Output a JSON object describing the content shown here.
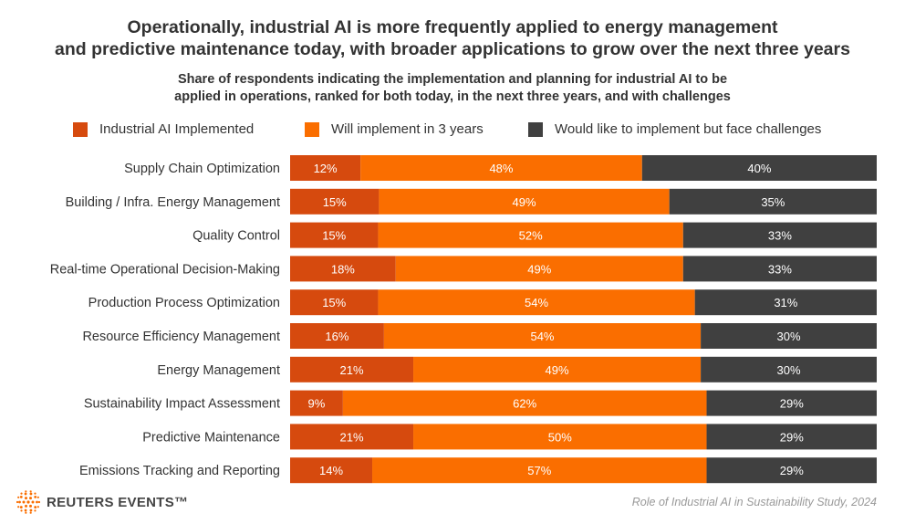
{
  "header": {
    "title_line1": "Operationally, industrial AI is more frequently applied to energy management",
    "title_line2": "and predictive maintenance today, with broader applications to grow over the next three years",
    "subtitle_line1": "Share of respondents indicating the implementation and planning for industrial AI to be",
    "subtitle_line2": "applied in operations, ranked for both today, in the next three years, and with challenges"
  },
  "legend": [
    {
      "label": "Industrial AI Implemented",
      "color": "#d64a0e"
    },
    {
      "label": "Will implement in 3 years",
      "color": "#fa6e00"
    },
    {
      "label": "Would like to implement but face challenges",
      "color": "#404040"
    }
  ],
  "chart_data": {
    "type": "bar",
    "orientation": "horizontal",
    "stacked": true,
    "categories": [
      "Supply Chain Optimization",
      "Building / Infra. Energy Management",
      "Quality Control",
      "Real-time Operational Decision-Making",
      "Production Process Optimization",
      "Resource Efficiency Management",
      "Energy Management",
      "Sustainability Impact Assessment",
      "Predictive Maintenance",
      "Emissions Tracking and Reporting"
    ],
    "series": [
      {
        "name": "Industrial AI Implemented",
        "color": "#d64a0e",
        "values": [
          12,
          15,
          15,
          18,
          15,
          16,
          21,
          9,
          21,
          14
        ]
      },
      {
        "name": "Will implement in 3 years",
        "color": "#fa6e00",
        "values": [
          48,
          49,
          52,
          49,
          54,
          54,
          49,
          62,
          50,
          57
        ]
      },
      {
        "name": "Would like to implement but face challenges",
        "color": "#404040",
        "values": [
          40,
          35,
          33,
          33,
          31,
          30,
          30,
          29,
          29,
          29
        ]
      }
    ],
    "labels": [
      [
        "12%",
        "48%",
        "40%"
      ],
      [
        "15%",
        "49%",
        "35%"
      ],
      [
        "15%",
        "52%",
        "33%"
      ],
      [
        "18%",
        "49%",
        "33%"
      ],
      [
        "15%",
        "54%",
        "31%"
      ],
      [
        "16%",
        "54%",
        "30%"
      ],
      [
        "21%",
        "49%",
        "30%"
      ],
      [
        "9%",
        "62%",
        "29%"
      ],
      [
        "21%",
        "50%",
        "29%"
      ],
      [
        "14%",
        "57%",
        "29%"
      ]
    ],
    "value_unit": "%"
  },
  "footer": {
    "logo_text": "REUTERS EVENTS™",
    "source": "Role of Industrial AI in Sustainability Study, 2024"
  }
}
